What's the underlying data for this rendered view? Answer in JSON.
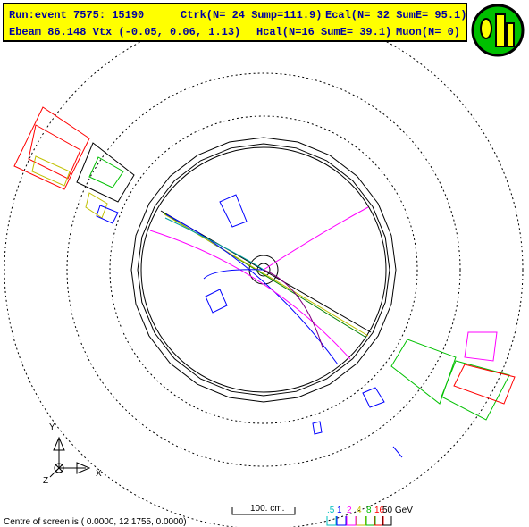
{
  "header": {
    "line1": [
      "Run:event 7575: 15190",
      "Ctrk(N= 24 Sump=111.9)",
      "Ecal(N= 32 SumE= 95.1)"
    ],
    "line2": [
      "Ebeam 86.148 Vtx (-0.05, 0.06, 1.13)",
      "Hcal(N=16 SumE= 39.1)",
      "Muon(N= 0)"
    ]
  },
  "axes": {
    "y": "Y",
    "z": "Z",
    "x": "X"
  },
  "footer": {
    "centre": "Centre of screen is (  0.0000,  12.1755,   0.0000)",
    "scale": "100. cm.",
    "energy_scale": [
      ".5",
      "1",
      "2",
      "4",
      "8",
      "16",
      "50 GeV"
    ]
  }
}
